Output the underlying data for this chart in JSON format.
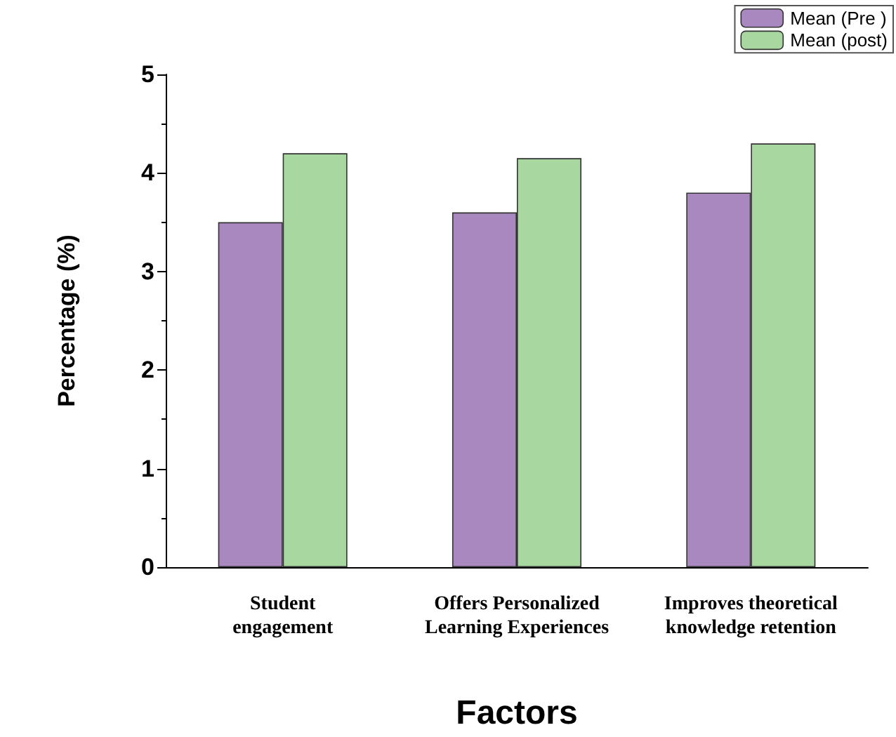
{
  "chart_data": {
    "type": "bar",
    "xlabel": "Factors",
    "ylabel": "Percentage (%)",
    "categories": [
      "Student\nengagement",
      "Offers Personalized\nLearning Experiences",
      "Improves theoretical\nknowledge retention"
    ],
    "series": [
      {
        "name": "Mean (Pre )",
        "color": "#a988c0",
        "values": [
          3.5,
          3.6,
          3.8
        ]
      },
      {
        "name": "Mean (post)",
        "color": "#a8d8a0",
        "values": [
          4.2,
          4.15,
          4.3
        ]
      }
    ],
    "ylim": [
      0,
      5
    ],
    "yticks": [
      0,
      1,
      2,
      3,
      4,
      5
    ],
    "grid": false,
    "legend": "top right"
  }
}
